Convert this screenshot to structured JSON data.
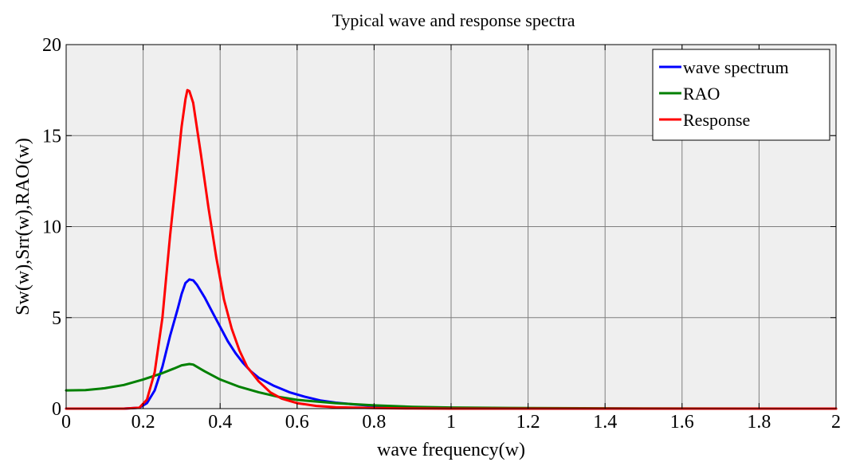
{
  "chart_data": {
    "type": "line",
    "title": "Typical wave and response spectra",
    "xlabel": "wave frequency(w)",
    "ylabel": "Sw(w),Srr(w),RAO(w)",
    "xlim": [
      0,
      2
    ],
    "ylim": [
      0,
      20
    ],
    "x_ticks": [
      {
        "v": 0,
        "label": "0"
      },
      {
        "v": 0.2,
        "label": "0.2"
      },
      {
        "v": 0.4,
        "label": "0.4"
      },
      {
        "v": 0.6,
        "label": "0.6"
      },
      {
        "v": 0.8,
        "label": "0.8"
      },
      {
        "v": 1.0,
        "label": "1"
      },
      {
        "v": 1.2,
        "label": "1.2"
      },
      {
        "v": 1.4,
        "label": "1.4"
      },
      {
        "v": 1.6,
        "label": "1.6"
      },
      {
        "v": 1.8,
        "label": "1.8"
      },
      {
        "v": 2.0,
        "label": "2"
      }
    ],
    "y_ticks": [
      {
        "v": 0,
        "label": "0"
      },
      {
        "v": 5,
        "label": "5"
      },
      {
        "v": 10,
        "label": "10"
      },
      {
        "v": 15,
        "label": "15"
      },
      {
        "v": 20,
        "label": "20"
      }
    ],
    "grid": true,
    "legend_position": "top-right",
    "plot_background": "#efefef",
    "series": [
      {
        "name": "wave spectrum",
        "color": "#0000ff",
        "points": [
          [
            0.0,
            0
          ],
          [
            0.15,
            0
          ],
          [
            0.19,
            0.05
          ],
          [
            0.21,
            0.3
          ],
          [
            0.23,
            1.0
          ],
          [
            0.25,
            2.3
          ],
          [
            0.27,
            4.0
          ],
          [
            0.29,
            5.5
          ],
          [
            0.3,
            6.3
          ],
          [
            0.31,
            6.9
          ],
          [
            0.32,
            7.1
          ],
          [
            0.33,
            7.05
          ],
          [
            0.34,
            6.8
          ],
          [
            0.36,
            6.1
          ],
          [
            0.38,
            5.3
          ],
          [
            0.4,
            4.5
          ],
          [
            0.42,
            3.7
          ],
          [
            0.44,
            3.05
          ],
          [
            0.46,
            2.5
          ],
          [
            0.48,
            2.05
          ],
          [
            0.5,
            1.7
          ],
          [
            0.54,
            1.25
          ],
          [
            0.58,
            0.9
          ],
          [
            0.62,
            0.65
          ],
          [
            0.66,
            0.45
          ],
          [
            0.7,
            0.33
          ],
          [
            0.75,
            0.23
          ],
          [
            0.8,
            0.15
          ],
          [
            0.9,
            0.07
          ],
          [
            1.0,
            0.03
          ],
          [
            1.2,
            0.01
          ],
          [
            1.5,
            0
          ],
          [
            2.0,
            0
          ]
        ]
      },
      {
        "name": "RAO",
        "color": "#008000",
        "points": [
          [
            0.0,
            1.0
          ],
          [
            0.05,
            1.02
          ],
          [
            0.1,
            1.12
          ],
          [
            0.15,
            1.3
          ],
          [
            0.2,
            1.6
          ],
          [
            0.25,
            1.95
          ],
          [
            0.28,
            2.2
          ],
          [
            0.3,
            2.38
          ],
          [
            0.32,
            2.45
          ],
          [
            0.33,
            2.42
          ],
          [
            0.36,
            2.05
          ],
          [
            0.4,
            1.6
          ],
          [
            0.45,
            1.2
          ],
          [
            0.5,
            0.9
          ],
          [
            0.55,
            0.65
          ],
          [
            0.6,
            0.48
          ],
          [
            0.7,
            0.3
          ],
          [
            0.8,
            0.18
          ],
          [
            0.9,
            0.1
          ],
          [
            1.0,
            0.06
          ],
          [
            1.2,
            0.03
          ],
          [
            1.5,
            0.01
          ],
          [
            2.0,
            0
          ]
        ]
      },
      {
        "name": "Response",
        "color": "#ff0000",
        "points": [
          [
            0.0,
            0
          ],
          [
            0.15,
            0
          ],
          [
            0.19,
            0.05
          ],
          [
            0.21,
            0.5
          ],
          [
            0.23,
            2.0
          ],
          [
            0.25,
            5.0
          ],
          [
            0.27,
            9.5
          ],
          [
            0.29,
            13.5
          ],
          [
            0.3,
            15.5
          ],
          [
            0.31,
            17.0
          ],
          [
            0.315,
            17.5
          ],
          [
            0.32,
            17.45
          ],
          [
            0.33,
            16.8
          ],
          [
            0.35,
            14.0
          ],
          [
            0.37,
            11.0
          ],
          [
            0.39,
            8.3
          ],
          [
            0.41,
            6.0
          ],
          [
            0.43,
            4.4
          ],
          [
            0.45,
            3.2
          ],
          [
            0.47,
            2.3
          ],
          [
            0.5,
            1.5
          ],
          [
            0.53,
            0.9
          ],
          [
            0.56,
            0.55
          ],
          [
            0.6,
            0.3
          ],
          [
            0.65,
            0.15
          ],
          [
            0.7,
            0.08
          ],
          [
            0.8,
            0.03
          ],
          [
            0.9,
            0.01
          ],
          [
            1.0,
            0
          ],
          [
            2.0,
            0
          ]
        ]
      }
    ]
  }
}
